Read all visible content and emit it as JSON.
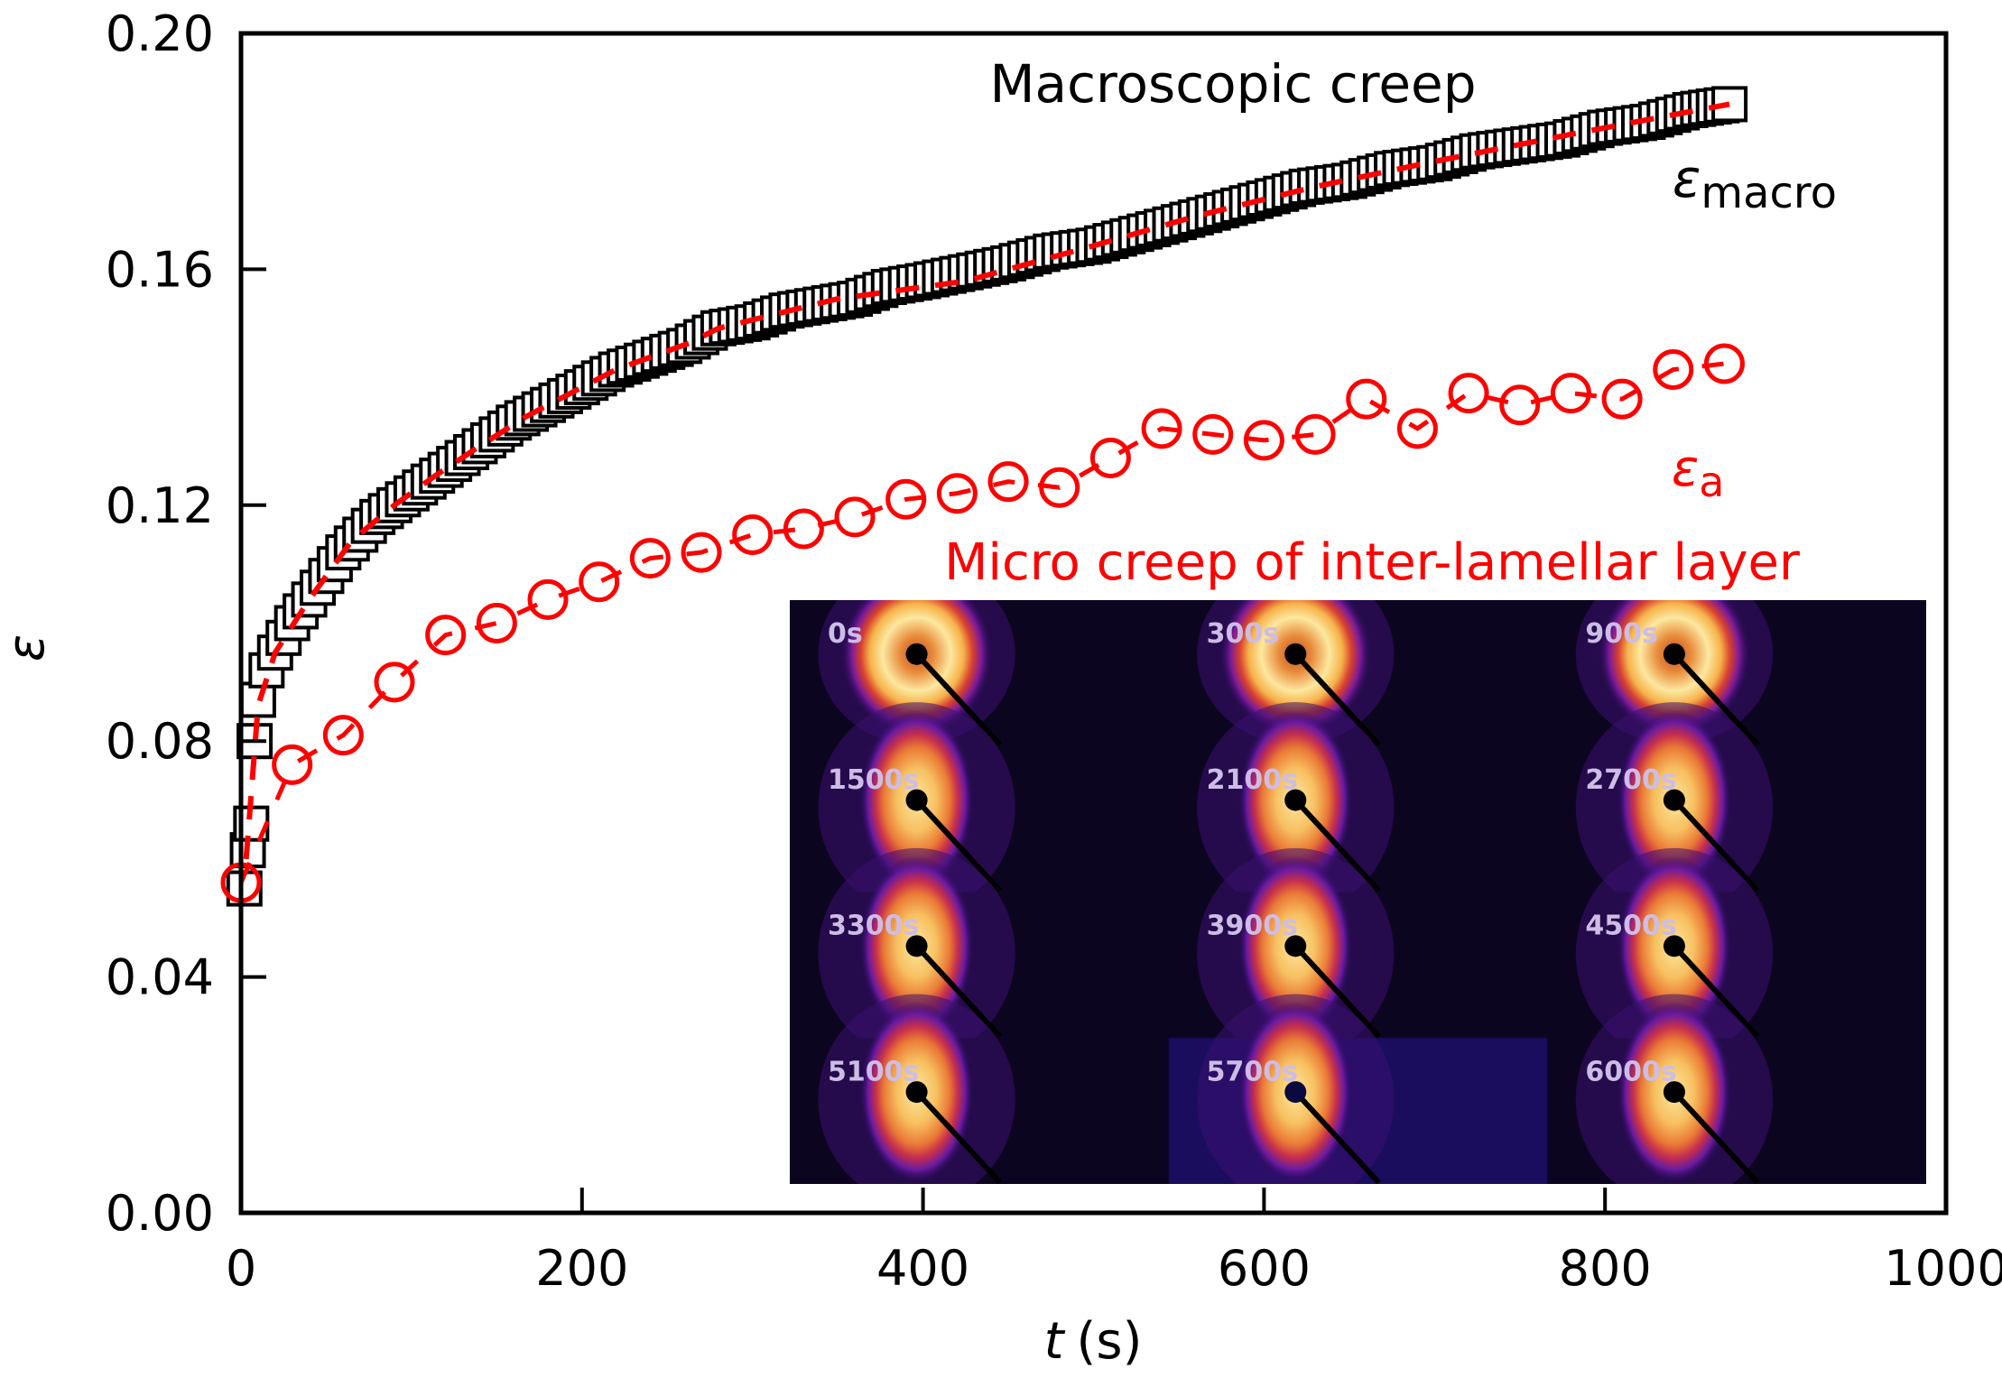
{
  "chart_data": {
    "type": "scatter",
    "title": "",
    "xlabel": "t (s)",
    "xlabel_italic_part": "t",
    "xlabel_unit": "(s)",
    "ylabel": "ε",
    "xlim": [
      0,
      1000
    ],
    "ylim": [
      0,
      0.2
    ],
    "xticks": [
      0,
      200,
      400,
      600,
      800,
      1000
    ],
    "xtick_labels": [
      "0",
      "200",
      "400",
      "600",
      "800",
      "1000"
    ],
    "yticks": [
      0,
      0.04,
      0.08,
      0.12,
      0.16,
      0.2
    ],
    "ytick_labels": [
      "0.00",
      "0.04",
      "0.08",
      "0.12",
      "0.16",
      "0.20"
    ],
    "grid": false,
    "colors": {
      "macro": "#000000",
      "micro": "#ff0000",
      "fit": "#ff0000"
    },
    "annotations": {
      "macro_title": "Macroscopic creep",
      "macro_symbol": "ε",
      "macro_subscript": "macro",
      "micro_symbol": "ε",
      "micro_subscript": "a",
      "micro_title": "Micro creep of inter-lamellar layer"
    },
    "series": [
      {
        "name": "ε_macro",
        "marker": "open-square",
        "color": "#000000",
        "x": [
          2,
          4,
          6,
          8,
          10,
          15,
          20,
          30,
          40,
          50,
          60,
          70,
          80,
          90,
          100,
          120,
          140,
          160,
          180,
          200,
          220,
          240,
          260,
          280,
          300,
          320,
          340,
          360,
          380,
          400,
          425,
          450,
          475,
          500,
          525,
          550,
          575,
          600,
          625,
          650,
          675,
          700,
          725,
          750,
          775,
          800,
          825,
          850,
          873
        ],
        "y": [
          0.055,
          0.0615,
          0.066,
          0.08,
          0.087,
          0.092,
          0.095,
          0.1,
          0.104,
          0.108,
          0.112,
          0.115,
          0.118,
          0.12,
          0.122,
          0.126,
          0.13,
          0.134,
          0.137,
          0.14,
          0.143,
          0.145,
          0.147,
          0.15,
          0.151,
          0.153,
          0.154,
          0.155,
          0.157,
          0.158,
          0.1595,
          0.161,
          0.163,
          0.164,
          0.166,
          0.168,
          0.17,
          0.172,
          0.174,
          0.175,
          0.177,
          0.178,
          0.18,
          0.181,
          0.182,
          0.184,
          0.185,
          0.187,
          0.188
        ]
      },
      {
        "name": "ε_macro fit",
        "marker": "none",
        "line": "dashed",
        "color": "#ff0000",
        "x": [
          3,
          10,
          20,
          40,
          65,
          90,
          114,
          140,
          167,
          200,
          220,
          263,
          280,
          350,
          425,
          500,
          560,
          630,
          695,
          782,
          873
        ],
        "y": [
          0.06,
          0.086,
          0.095,
          0.104,
          0.114,
          0.12,
          0.125,
          0.13,
          0.135,
          0.14,
          0.143,
          0.1475,
          0.15,
          0.155,
          0.158,
          0.164,
          0.169,
          0.174,
          0.178,
          0.183,
          0.188
        ]
      },
      {
        "name": "ε_a",
        "marker": "open-circle",
        "line": "dashed",
        "color": "#ff0000",
        "x": [
          0,
          30,
          60,
          90,
          120,
          150,
          180,
          210,
          240,
          270,
          300,
          330,
          360,
          390,
          420,
          450,
          480,
          510,
          540,
          570,
          600,
          630,
          660,
          690,
          720,
          750,
          780,
          810,
          840,
          870
        ],
        "y": [
          0.056,
          0.076,
          0.081,
          0.09,
          0.098,
          0.1,
          0.104,
          0.107,
          0.111,
          0.112,
          0.115,
          0.116,
          0.118,
          0.121,
          0.122,
          0.124,
          0.123,
          0.128,
          0.133,
          0.132,
          0.131,
          0.132,
          0.138,
          0.133,
          0.139,
          0.137,
          0.139,
          0.138,
          0.143,
          0.144
        ]
      }
    ],
    "inset": {
      "type": "heatmap-image-grid",
      "rows": 4,
      "cols": 3,
      "labels": [
        "0s",
        "300s",
        "900s",
        "1500s",
        "2100s",
        "2700s",
        "3300s",
        "3900s",
        "4500s",
        "5100s",
        "5700s",
        "6000s"
      ],
      "pattern_shape": [
        "ring",
        "ring",
        "ring",
        "two-lobe",
        "two-lobe",
        "two-lobe",
        "two-lobe",
        "two-lobe",
        "two-lobe",
        "two-lobe",
        "two-lobe",
        "two-lobe"
      ],
      "background_colors": [
        "#0c0520",
        "#0c0520",
        "#0c0520",
        "#0c0520",
        "#0c0520",
        "#0c0520",
        "#0c0520",
        "#0c0520",
        "#0c0520",
        "#0c0520",
        "#1a0d5e",
        "#0c0520"
      ],
      "label_color": "#cdbde6"
    }
  }
}
